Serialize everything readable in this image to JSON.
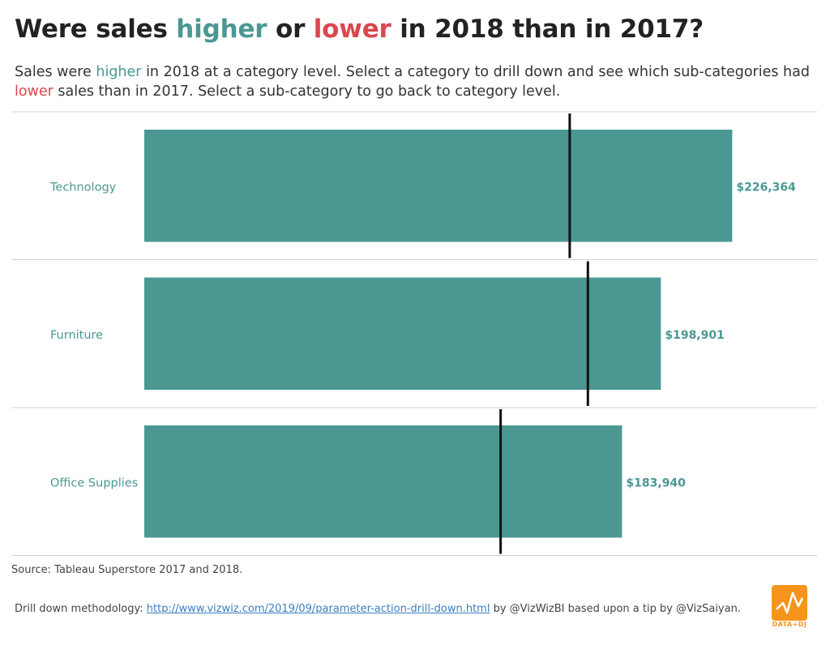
{
  "header": {
    "title_parts": {
      "p1": "Were sales ",
      "higher": "higher",
      "p2": " or ",
      "lower": "lower",
      "p3": " in 2018 than in 2017?"
    },
    "subtitle_parts": {
      "p1": "Sales were ",
      "higher": "higher",
      "p2": " in 2018 at a category level.  Select a category to drill down and see which sub-categories had ",
      "lower": "lower",
      "p3": " sales than in 2017.  Select a sub-category to go back to category level."
    }
  },
  "colors": {
    "higher": "#4b9893",
    "lower": "#d9474f",
    "bar": "#4b9893",
    "reference_line": "#111111",
    "divider": "#d0d0d0"
  },
  "chart_data": {
    "type": "bar",
    "orientation": "horizontal",
    "categories": [
      "Technology",
      "Furniture",
      "Office Supplies"
    ],
    "series": [
      {
        "values": [
          226364,
          198901,
          183940
        ]
      }
    ],
    "value_labels": [
      "$226,364",
      "$198,901",
      "$183,940"
    ],
    "reference_values": [
      163800,
      170800,
      137200
    ],
    "xlim": [
      0,
      230000
    ],
    "grid": false,
    "legend": "none"
  },
  "footer": {
    "source": "Source: Tableau Superstore 2017 and 2018.",
    "methodology_prefix": "Drill down methodology: ",
    "link_text": "http://www.vizwiz.com/2019/09/parameter-action-drill-down.html",
    "methodology_suffix": " by @VizWizBI based upon a tip by @VizSaiyan.",
    "logo_text": "DATA+DJ",
    "logo_icon": "data-dj-logo-icon"
  }
}
